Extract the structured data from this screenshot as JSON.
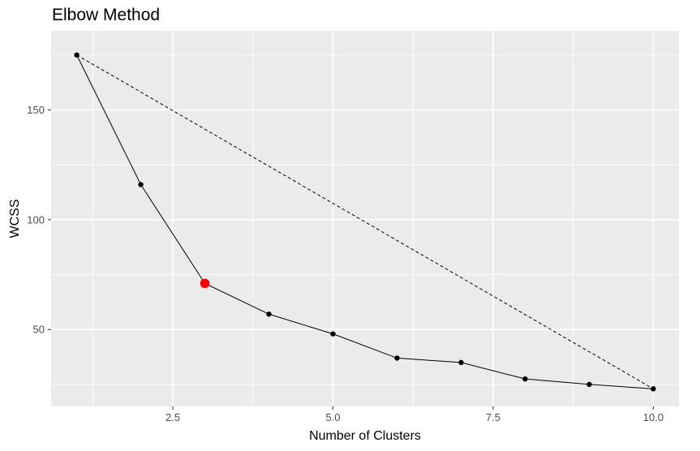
{
  "chart_data": {
    "type": "line",
    "title": "Elbow Method",
    "xlabel": "Number of Clusters",
    "ylabel": "WCSS",
    "x": [
      1,
      2,
      3,
      4,
      5,
      6,
      7,
      8,
      9,
      10
    ],
    "series": [
      {
        "values": [
          175,
          116,
          71,
          57,
          48,
          37,
          35,
          27.5,
          25,
          23
        ]
      }
    ],
    "highlight": {
      "x": 3,
      "y": 71,
      "color": "#ff0000"
    },
    "reference_line": {
      "from": [
        1,
        175
      ],
      "to": [
        10,
        23
      ],
      "style": "dashed"
    },
    "xlim": [
      0.6,
      10.4
    ],
    "ylim": [
      15,
      186
    ],
    "x_ticks": [
      2.5,
      5.0,
      7.5,
      10.0
    ],
    "x_tick_labels": [
      "2.5",
      "5.0",
      "7.5",
      "10.0"
    ],
    "y_ticks": [
      50,
      100,
      150
    ],
    "y_tick_labels": [
      "50",
      "100",
      "150"
    ],
    "grid": true,
    "panel_background": "#ebebeb",
    "grid_color": "#ffffff",
    "line_color": "#000000",
    "point_color": "#000000"
  }
}
